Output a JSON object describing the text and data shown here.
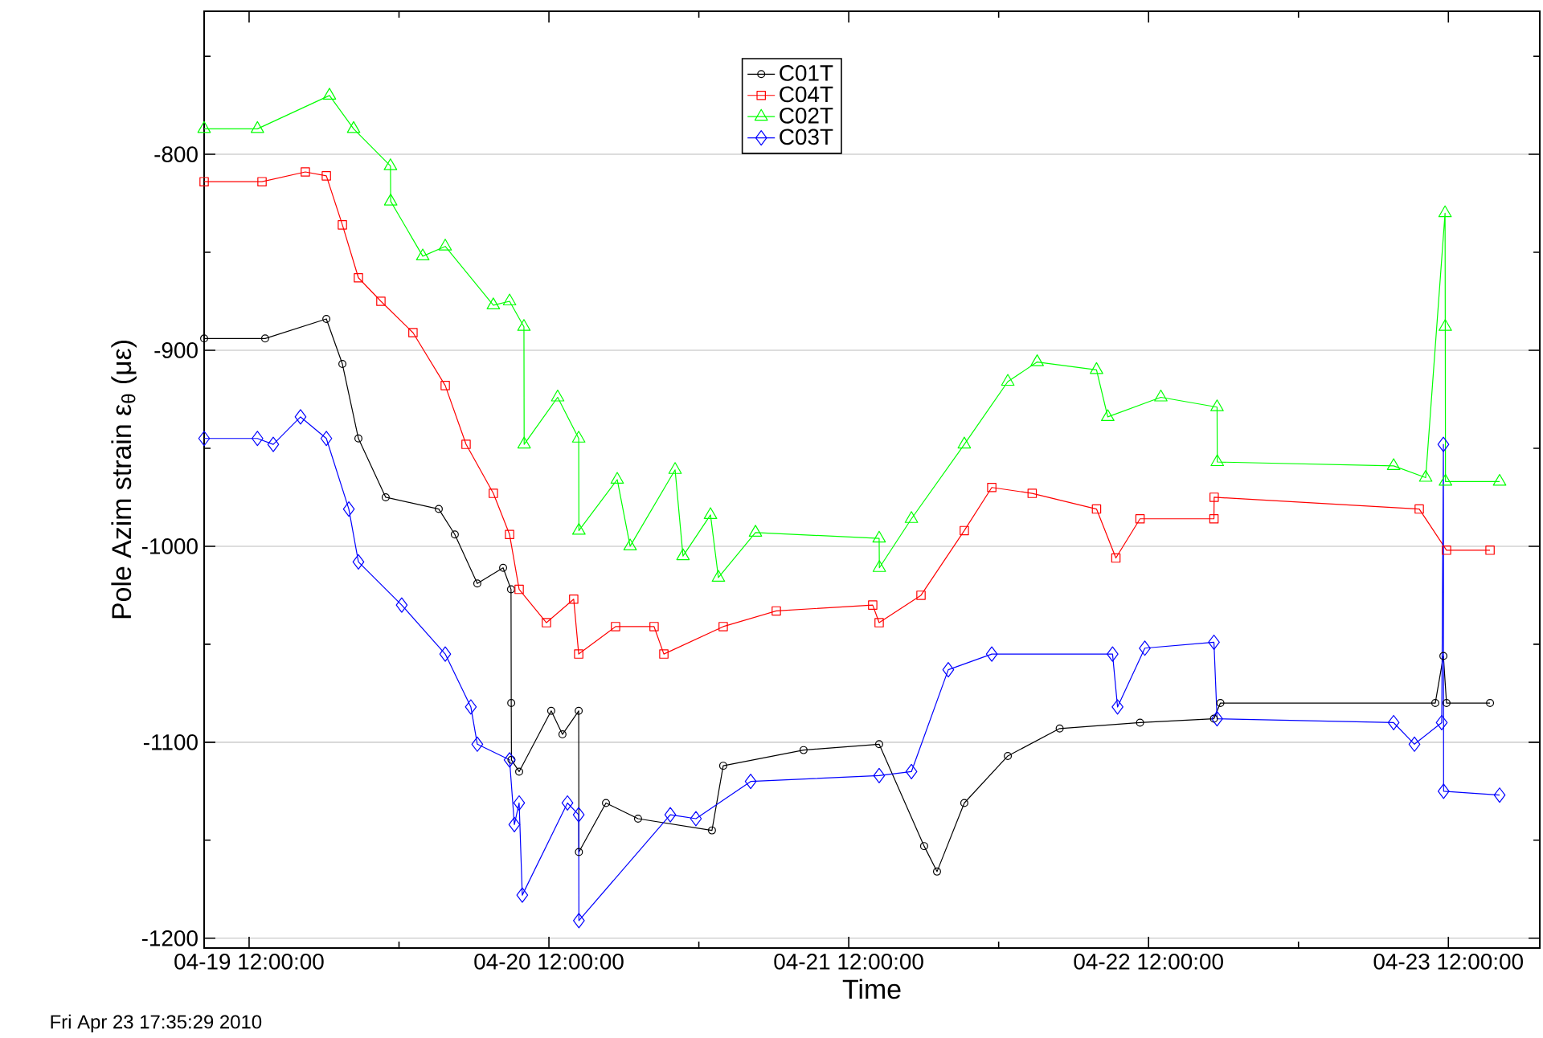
{
  "chart_data": {
    "type": "line",
    "xlabel": "Time",
    "ylabel": "Pole Azim strain ε$_{θ}$ (με)",
    "annotations": [
      "Fri Apr 23 17:35:29 2010"
    ],
    "xlim": [
      "2010-04-19T08:24",
      "2010-04-23T19:19"
    ],
    "xticks": [
      {
        "value": "2010-04-19T12:00",
        "label": "04-19 12:00:00"
      },
      {
        "value": "2010-04-20T00:00",
        "label": null
      },
      {
        "value": "2010-04-20T12:00",
        "label": "04-20 12:00:00"
      },
      {
        "value": "2010-04-21T00:00",
        "label": null
      },
      {
        "value": "2010-04-21T12:00",
        "label": "04-21 12:00:00"
      },
      {
        "value": "2010-04-22T00:00",
        "label": null
      },
      {
        "value": "2010-04-22T12:00",
        "label": "04-22 12:00:00"
      },
      {
        "value": "2010-04-23T00:00",
        "label": null
      },
      {
        "value": "2010-04-23T12:00",
        "label": "04-23 12:00:00"
      }
    ],
    "ylim": [
      -1205,
      -727
    ],
    "yticks": [
      {
        "value": -750,
        "label": null
      },
      -800,
      {
        "value": -850,
        "label": null
      },
      -900,
      {
        "value": -950,
        "label": null
      },
      -1000,
      {
        "value": -1050,
        "label": null
      },
      -1100,
      {
        "value": -1150,
        "label": null
      },
      -1200
    ],
    "grid": "y",
    "legend": "top",
    "series": [
      {
        "name": "C01T",
        "color": "#000000",
        "marker": "circle",
        "x": [
          "2010-04-19T08:24",
          "2010-04-19T13:17",
          "2010-04-19T18:11",
          "2010-04-19T19:28",
          "2010-04-19T20:45",
          "2010-04-19T22:56",
          "2010-04-20T03:11",
          "2010-04-20T04:28",
          "2010-04-20T06:16",
          "2010-04-20T08:20",
          "2010-04-20T08:58",
          "2010-04-20T08:59",
          "2010-04-20T09:00",
          "2010-04-20T09:37",
          "2010-04-20T12:11",
          "2010-04-20T13:05",
          "2010-04-20T14:23",
          "2010-04-20T14:24",
          "2010-04-20T16:34",
          "2010-04-20T19:08",
          "2010-04-21T01:03",
          "2010-04-21T01:57",
          "2010-04-21T08:23",
          "2010-04-21T14:26",
          "2010-04-21T18:02",
          "2010-04-21T19:04",
          "2010-04-21T21:15",
          "2010-04-22T00:44",
          "2010-04-22T04:53",
          "2010-04-22T11:19",
          "2010-04-22T17:14",
          "2010-04-22T17:45",
          "2010-04-23T10:57",
          "2010-04-23T11:36",
          "2010-04-23T11:51",
          "2010-04-23T15:20"
        ],
        "values": [
          -894,
          -894,
          -884,
          -907,
          -945,
          -975,
          -981,
          -994,
          -1019,
          -1011,
          -1022,
          -1080,
          -1109,
          -1115,
          -1084,
          -1096,
          -1084,
          -1156,
          -1131,
          -1139,
          -1145,
          -1112,
          -1104,
          -1101,
          -1153,
          -1166,
          -1131,
          -1107,
          -1093,
          -1090,
          -1088,
          -1080,
          -1080,
          -1056,
          -1080,
          -1080
        ]
      },
      {
        "name": "C04T",
        "color": "#ff0000",
        "marker": "square",
        "x": [
          "2010-04-19T08:24",
          "2010-04-19T13:02",
          "2010-04-19T16:30",
          "2010-04-19T18:11",
          "2010-04-19T19:28",
          "2010-04-19T20:45",
          "2010-04-19T22:33",
          "2010-04-20T01:07",
          "2010-04-20T03:42",
          "2010-04-20T05:22",
          "2010-04-20T07:33",
          "2010-04-20T08:51",
          "2010-04-20T09:37",
          "2010-04-20T11:48",
          "2010-04-20T13:59",
          "2010-04-20T14:23",
          "2010-04-20T17:20",
          "2010-04-20T20:25",
          "2010-04-20T21:12",
          "2010-04-21T01:57",
          "2010-04-21T06:12",
          "2010-04-21T13:55",
          "2010-04-21T14:26",
          "2010-04-21T17:47",
          "2010-04-21T21:15",
          "2010-04-21T23:27",
          "2010-04-22T02:41",
          "2010-04-22T07:50",
          "2010-04-22T09:23",
          "2010-04-22T11:19",
          "2010-04-22T17:14",
          "2010-04-22T17:15",
          "2010-04-23T09:40",
          "2010-04-23T11:51",
          "2010-04-23T15:20"
        ],
        "values": [
          -814,
          -814,
          -809,
          -811,
          -836,
          -863,
          -875,
          -891,
          -918,
          -948,
          -973,
          -994,
          -1022,
          -1039,
          -1027,
          -1055,
          -1041,
          -1041,
          -1055,
          -1041,
          -1033,
          -1030,
          -1039,
          -1025,
          -992,
          -970,
          -973,
          -981,
          -1006,
          -986,
          -986,
          -975,
          -981,
          -1002,
          -1002
        ]
      },
      {
        "name": "C02T",
        "color": "#00ff00",
        "marker": "triangle",
        "x": [
          "2010-04-19T08:24",
          "2010-04-19T12:40",
          "2010-04-19T18:26",
          "2010-04-19T20:22",
          "2010-04-19T23:19",
          "2010-04-19T23:20",
          "2010-04-20T01:54",
          "2010-04-20T03:42",
          "2010-04-20T07:33",
          "2010-04-20T08:51",
          "2010-04-20T10:00",
          "2010-04-20T10:01",
          "2010-04-20T12:42",
          "2010-04-20T14:23",
          "2010-04-20T14:24",
          "2010-04-20T17:28",
          "2010-04-20T18:30",
          "2010-04-20T22:06",
          "2010-04-20T22:44",
          "2010-04-21T00:56",
          "2010-04-21T01:34",
          "2010-04-21T04:32",
          "2010-04-21T14:26",
          "2010-04-21T14:27",
          "2010-04-21T17:01",
          "2010-04-21T21:15",
          "2010-04-22T00:44",
          "2010-04-22T03:05",
          "2010-04-22T07:50",
          "2010-04-22T08:44",
          "2010-04-22T12:59",
          "2010-04-22T17:29",
          "2010-04-22T17:30",
          "2010-04-23T07:37",
          "2010-04-23T10:11",
          "2010-04-23T11:44",
          "2010-04-23T11:45",
          "2010-04-23T11:46",
          "2010-04-23T16:06"
        ],
        "values": [
          -787,
          -787,
          -770,
          -787,
          -806,
          -824,
          -852,
          -847,
          -877,
          -875,
          -888,
          -948,
          -924,
          -945,
          -992,
          -966,
          -1000,
          -961,
          -1005,
          -984,
          -1016,
          -993,
          -996,
          -1011,
          -986,
          -948,
          -916,
          -906,
          -910,
          -934,
          -924,
          -929,
          -957,
          -959,
          -965,
          -830,
          -888,
          -967,
          -967
        ]
      },
      {
        "name": "C03T",
        "color": "#0000ff",
        "marker": "diamond",
        "x": [
          "2010-04-19T08:24",
          "2010-04-19T12:40",
          "2010-04-19T13:56",
          "2010-04-19T16:07",
          "2010-04-19T18:11",
          "2010-04-19T19:59",
          "2010-04-19T20:45",
          "2010-04-20T00:13",
          "2010-04-20T03:42",
          "2010-04-20T05:45",
          "2010-04-20T06:16",
          "2010-04-20T08:51",
          "2010-04-20T09:14",
          "2010-04-20T09:37",
          "2010-04-20T09:52",
          "2010-04-20T13:29",
          "2010-04-20T14:23",
          "2010-04-20T14:24",
          "2010-04-20T21:43",
          "2010-04-20T23:46",
          "2010-04-21T04:09",
          "2010-04-21T14:26",
          "2010-04-21T17:01",
          "2010-04-21T19:58",
          "2010-04-21T23:27",
          "2010-04-22T09:07",
          "2010-04-22T09:31",
          "2010-04-22T11:42",
          "2010-04-22T17:14",
          "2010-04-22T17:29",
          "2010-04-23T07:37",
          "2010-04-23T09:17",
          "2010-04-23T11:28",
          "2010-04-23T11:36",
          "2010-04-23T11:37",
          "2010-04-23T16:06"
        ],
        "values": [
          -945,
          -945,
          -948,
          -934,
          -945,
          -981,
          -1008,
          -1030,
          -1055,
          -1082,
          -1101,
          -1109,
          -1142,
          -1131,
          -1178,
          -1131,
          -1137,
          -1191,
          -1137,
          -1139,
          -1120,
          -1117,
          -1115,
          -1063,
          -1055,
          -1055,
          -1082,
          -1052,
          -1049,
          -1088,
          -1090,
          -1101,
          -1090,
          -948,
          -1125,
          -1127
        ]
      }
    ]
  }
}
